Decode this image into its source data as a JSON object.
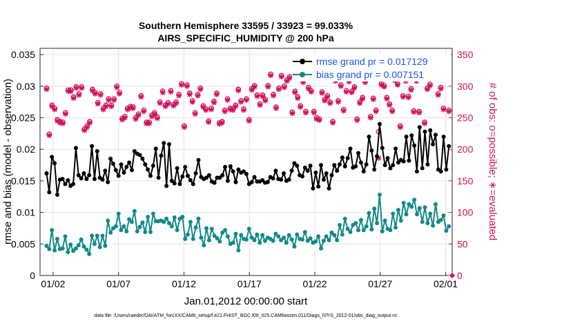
{
  "colors": {
    "rmse": "#000000",
    "bias": "#128a88",
    "obs": "#d0105a",
    "legend_text": "#1a56e8",
    "grid": "#e3e3e3"
  },
  "chart_data": {
    "type": "line",
    "title": "Southern Hemisphere 33595 / 33923 = 99.033%",
    "subtitle": "AIRS_SPECIFIC_HUMIDITY @ 200 hPa",
    "xlabel": "Jan.01,2012 00:00:00 start",
    "ylabel": "rmse and bias (model - observation)",
    "ylabel_right": "# of obs: o=possible; ∗=evaluated",
    "footnote": "data file: /Users/raeder/DAI/ATM_forcXX/CAM6_setup/f.e21.FHIST_BGC.f09_025.CAM6assim.011/Diags_NTrS_2012-01/obs_diag_output.nc",
    "xlim": [
      0,
      31.5
    ],
    "ylim": [
      0,
      0.036
    ],
    "ylim_right": [
      0,
      360
    ],
    "x_ticks": [
      {
        "value": 1,
        "label": "01/02"
      },
      {
        "value": 6,
        "label": "01/07"
      },
      {
        "value": 11,
        "label": "01/12"
      },
      {
        "value": 16,
        "label": "01/17"
      },
      {
        "value": 21,
        "label": "01/22"
      },
      {
        "value": 26,
        "label": "01/27"
      },
      {
        "value": 31,
        "label": "02/01"
      }
    ],
    "y_ticks": [
      {
        "value": 0,
        "label": "0"
      },
      {
        "value": 0.005,
        "label": "0.005"
      },
      {
        "value": 0.01,
        "label": "0.01"
      },
      {
        "value": 0.015,
        "label": "0.015"
      },
      {
        "value": 0.02,
        "label": "0.02"
      },
      {
        "value": 0.025,
        "label": "0.025"
      },
      {
        "value": 0.03,
        "label": "0.03"
      },
      {
        "value": 0.035,
        "label": "0.035"
      }
    ],
    "y2_ticks": [
      {
        "value": 0,
        "label": "0"
      },
      {
        "value": 50,
        "label": "50"
      },
      {
        "value": 100,
        "label": "100"
      },
      {
        "value": 150,
        "label": "150"
      },
      {
        "value": 200,
        "label": "200"
      },
      {
        "value": 250,
        "label": "250"
      },
      {
        "value": 300,
        "label": "300"
      },
      {
        "value": 350,
        "label": "350"
      }
    ],
    "grid": true,
    "legend_position": "top-right",
    "series": [
      {
        "name": "rmse grand pr = 0.017129",
        "axis": "left",
        "marker": "filled-circle",
        "values": [
          0.0162,
          0.0132,
          0.0188,
          0.0178,
          0.0128,
          0.0152,
          0.0153,
          0.0145,
          0.0151,
          0.0142,
          0.0145,
          0.0202,
          0.0159,
          0.0154,
          0.0162,
          0.0153,
          0.0159,
          0.0205,
          0.0153,
          0.0197,
          0.0155,
          0.0152,
          0.0166,
          0.0148,
          0.0185,
          0.0177,
          0.0167,
          0.0158,
          0.0176,
          0.0163,
          0.0172,
          0.0179,
          0.0167,
          0.0197,
          0.0193,
          0.0191,
          0.0185,
          0.0176,
          0.0168,
          0.0158,
          0.0174,
          0.0201,
          0.0155,
          0.019,
          0.021,
          0.0142,
          0.0208,
          0.015,
          0.0146,
          0.017,
          0.0145,
          0.0157,
          0.0172,
          0.0158,
          0.0151,
          0.0145,
          0.0162,
          0.0183,
          0.0156,
          0.0153,
          0.0155,
          0.0159,
          0.0149,
          0.0147,
          0.0155,
          0.0155,
          0.0159,
          0.0172,
          0.015,
          0.0173,
          0.0165,
          0.0148,
          0.0168,
          0.0163,
          0.0165,
          0.0161,
          0.0145,
          0.0148,
          0.0156,
          0.0149,
          0.0149,
          0.0151,
          0.0147,
          0.0148,
          0.0156,
          0.0154,
          0.0166,
          0.0153,
          0.0152,
          0.0162,
          0.015,
          0.0152,
          0.0166,
          0.0178,
          0.0174,
          0.0159,
          0.0157,
          0.0171,
          0.0166,
          0.0174,
          0.0138,
          0.0163,
          0.0141,
          0.0175,
          0.0152,
          0.0162,
          0.0138,
          0.0159,
          0.0175,
          0.0166,
          0.0176,
          0.0187,
          0.0173,
          0.0186,
          0.0201,
          0.0171,
          0.0173,
          0.0194,
          0.0179,
          0.0165,
          0.0176,
          0.022,
          0.0198,
          0.0168,
          0.0189,
          0.024,
          0.0202,
          0.0175,
          0.0186,
          0.017,
          0.0175,
          0.0201,
          0.0179,
          0.0183,
          0.0181,
          0.022,
          0.0182,
          0.0222,
          0.0206,
          0.0165,
          0.0235,
          0.017,
          0.0228,
          0.0176,
          0.023,
          0.0208,
          0.0223,
          0.0168,
          0.0165,
          0.022,
          0.0168,
          0.0205
        ]
      },
      {
        "name": "bias grand pr = 0.007151",
        "axis": "left",
        "marker": "filled-circle",
        "values": [
          0.0047,
          0.0042,
          0.0072,
          0.004,
          0.0058,
          0.0042,
          0.0043,
          0.0062,
          0.0037,
          0.0049,
          0.0039,
          0.0043,
          0.0048,
          0.0057,
          0.0046,
          0.0041,
          0.0034,
          0.0063,
          0.005,
          0.0063,
          0.0045,
          0.0063,
          0.0047,
          0.0087,
          0.0068,
          0.0075,
          0.0078,
          0.0098,
          0.0072,
          0.0078,
          0.007,
          0.0089,
          0.0085,
          0.0102,
          0.007,
          0.0077,
          0.0084,
          0.0069,
          0.0093,
          0.0069,
          0.0098,
          0.0086,
          0.0086,
          0.0087,
          0.0085,
          0.009,
          0.0083,
          0.0078,
          0.0092,
          0.0072,
          0.009,
          0.0093,
          0.0058,
          0.0065,
          0.0085,
          0.0058,
          0.0076,
          0.009,
          0.006,
          0.0048,
          0.0075,
          0.0056,
          0.0074,
          0.0063,
          0.0059,
          0.0054,
          0.0068,
          0.0072,
          0.0062,
          0.005,
          0.0052,
          0.0066,
          0.004,
          0.0064,
          0.0058,
          0.0057,
          0.0074,
          0.006,
          0.0056,
          0.0065,
          0.0052,
          0.0064,
          0.0055,
          0.006,
          0.0058,
          0.0055,
          0.0066,
          0.0062,
          0.0056,
          0.006,
          0.0052,
          0.0064,
          0.0057,
          0.0046,
          0.0065,
          0.0058,
          0.0057,
          0.0069,
          0.0055,
          0.0059,
          0.0052,
          0.0054,
          0.0062,
          0.0043,
          0.0055,
          0.0062,
          0.0056,
          0.0068,
          0.0064,
          0.0056,
          0.008,
          0.0065,
          0.009,
          0.0074,
          0.0069,
          0.008,
          0.0083,
          0.0072,
          0.0088,
          0.0072,
          0.0078,
          0.0099,
          0.0073,
          0.0106,
          0.0083,
          0.0128,
          0.007,
          0.0087,
          0.0074,
          0.0072,
          0.0098,
          0.0076,
          0.0104,
          0.0087,
          0.0115,
          0.0097,
          0.0113,
          0.0109,
          0.012,
          0.0097,
          0.0107,
          0.0085,
          0.0108,
          0.0083,
          0.0098,
          0.0079,
          0.0113,
          0.0085,
          0.0088,
          0.0095,
          0.0071,
          0.0078
        ]
      },
      {
        "name": "possible",
        "axis": "right",
        "marker": "open-circle",
        "values": [
          297,
          224,
          270,
          265,
          247,
          244,
          243,
          258,
          294,
          294,
          283,
          299,
          288,
          299,
          232,
          237,
          244,
          295,
          290,
          274,
          288,
          265,
          270,
          280,
          270,
          280,
          300,
          290,
          249,
          252,
          265,
          268,
          267,
          250,
          256,
          285,
          262,
          243,
          243,
          254,
          258,
          251,
          275,
          292,
          270,
          274,
          293,
          271,
          275,
          287,
          304,
          237,
          302,
          289,
          277,
          258,
          287,
          297,
          269,
          264,
          245,
          265,
          276,
          289,
          242,
          244,
          262,
          280,
          265,
          264,
          270,
          295,
          277,
          264,
          280,
          247,
          296,
          301,
          286,
          272,
          286,
          279,
          301,
          319,
          287,
          267,
          297,
          317,
          300,
          310,
          315,
          259,
          292,
          283,
          269,
          308,
          260,
          298,
          293,
          260,
          250,
          248,
          291,
          279,
          285,
          275,
          244,
          310,
          277,
          302,
          263,
          293,
          309,
          292,
          299,
          248,
          275,
          282,
          308,
          320,
          252,
          281,
          262,
          228,
          304,
          301,
          282,
          272,
          262,
          311,
          304,
          237,
          285,
          310,
          284,
          296,
          261,
          310,
          260,
          321,
          243,
          297,
          303,
          314,
          315,
          288,
          298,
          265,
          325,
          262
        ]
      },
      {
        "name": "evaluated",
        "axis": "right",
        "marker": "asterisk",
        "values": [
          295,
          222,
          268,
          263,
          245,
          242,
          241,
          256,
          292,
          292,
          281,
          297,
          286,
          297,
          230,
          235,
          242,
          293,
          288,
          272,
          286,
          263,
          268,
          278,
          268,
          278,
          298,
          288,
          247,
          250,
          263,
          266,
          265,
          248,
          254,
          283,
          260,
          241,
          241,
          252,
          256,
          249,
          273,
          290,
          268,
          272,
          291,
          269,
          273,
          285,
          302,
          235,
          300,
          287,
          275,
          256,
          285,
          295,
          267,
          262,
          243,
          263,
          274,
          287,
          240,
          242,
          260,
          278,
          263,
          262,
          268,
          293,
          275,
          262,
          278,
          245,
          294,
          299,
          284,
          270,
          284,
          277,
          299,
          317,
          285,
          265,
          295,
          315,
          298,
          308,
          313,
          257,
          290,
          281,
          267,
          306,
          258,
          296,
          291,
          258,
          248,
          246,
          289,
          277,
          283,
          273,
          242,
          308,
          275,
          300,
          261,
          291,
          307,
          290,
          297,
          246,
          273,
          280,
          306,
          318,
          250,
          279,
          260,
          186,
          302,
          299,
          280,
          270,
          260,
          309,
          302,
          235,
          283,
          308,
          282,
          294,
          259,
          308,
          258,
          319,
          241,
          295,
          301,
          312,
          313,
          286,
          296,
          263,
          323,
          260
        ]
      }
    ]
  }
}
